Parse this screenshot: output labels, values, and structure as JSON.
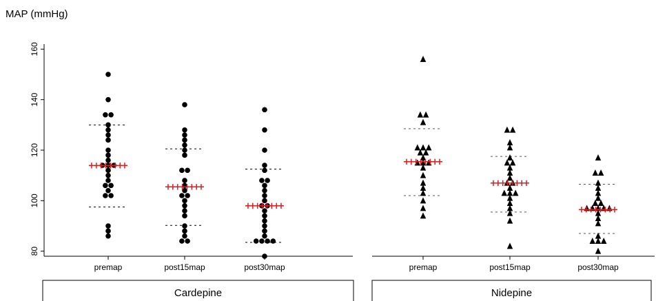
{
  "title": "MAP (mmHg)",
  "chart_data": {
    "type": "scatter",
    "title": "MAP (mmHg)",
    "ylim": [
      78,
      162
    ],
    "yticks": [
      80,
      100,
      120,
      140,
      160
    ],
    "categories": [
      "premap",
      "post15map",
      "post30map"
    ],
    "panels": [
      {
        "name": "Cardepine",
        "marker": "circle",
        "series": [
          {
            "category": "premap",
            "values": [
              150,
              140,
              134,
              134,
              130,
              128,
              126,
              124,
              120,
              118,
              116,
              114,
              114,
              114,
              112,
              110,
              108,
              106,
              106,
              104,
              102,
              102,
              90,
              88,
              86
            ],
            "mean": 114,
            "sd_upper": 130,
            "sd_lower": 97.5
          },
          {
            "category": "post15map",
            "values": [
              138,
              128,
              126,
              124,
              122,
              120,
              118,
              112,
              112,
              108,
              106,
              104,
              102,
              102,
              100,
              98,
              96,
              94,
              90,
              88,
              86,
              84,
              84
            ],
            "mean": 105.5,
            "sd_upper": 120.5,
            "sd_lower": 90.2
          },
          {
            "category": "post30map",
            "values": [
              136,
              128,
              120,
              114,
              112,
              108,
              108,
              106,
              104,
              102,
              100,
              98,
              98,
              96,
              94,
              92,
              90,
              88,
              86,
              84,
              84,
              84,
              84,
              78
            ],
            "mean": 98,
            "sd_upper": 112.5,
            "sd_lower": 83.5
          }
        ]
      },
      {
        "name": "Nidepine",
        "marker": "triangle",
        "series": [
          {
            "category": "premap",
            "values": [
              156,
              134,
              134,
              131,
              121,
              121,
              121,
              119,
              119,
              117,
              115,
              115,
              115,
              113,
              110,
              107,
              105,
              103,
              100,
              97,
              94
            ],
            "mean": 115.5,
            "sd_upper": 128.5,
            "sd_lower": 102
          },
          {
            "category": "post15map",
            "values": [
              128,
              128,
              123,
              121,
              117,
              115,
              115,
              113,
              111,
              109,
              107,
              107,
              105,
              103,
              103,
              103,
              101,
              99,
              97,
              95,
              92,
              82
            ],
            "mean": 107,
            "sd_upper": 117.5,
            "sd_lower": 95.5
          },
          {
            "category": "post30map",
            "values": [
              117,
              111,
              111,
              107,
              105,
              103,
              101,
              99,
              99,
              97,
              97,
              97,
              97,
              97,
              95,
              93,
              91,
              86,
              84,
              84,
              84,
              80
            ],
            "mean": 96.5,
            "sd_upper": 106.5,
            "sd_lower": 87
          }
        ]
      }
    ]
  }
}
